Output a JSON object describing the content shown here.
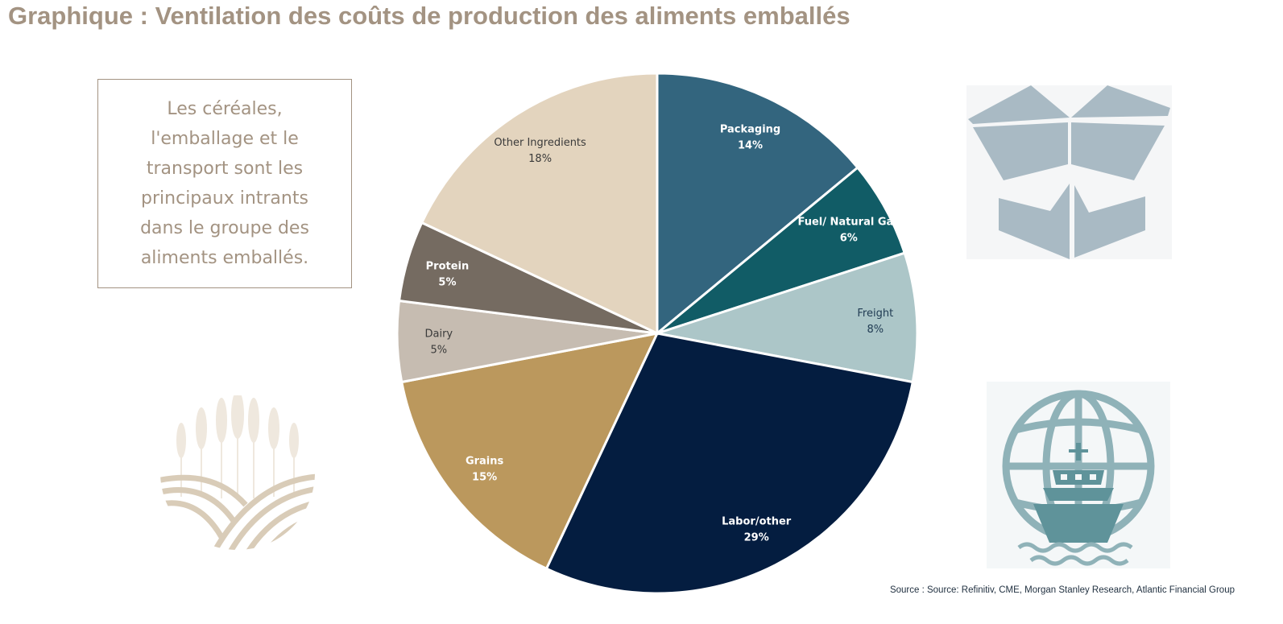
{
  "title": "Graphique : Ventilation des coûts de production des aliments emballés",
  "callout": "Les céréales, l'emballage et le transport sont les principaux intrants dans le groupe des aliments emballés.",
  "source": "Source : Source: Refinitiv, CME, Morgan Stanley Research, Atlantic Financial Group",
  "icons": {
    "box": "open-box-icon",
    "wheat": "wheat-field-icon",
    "ship": "ship-globe-icon"
  },
  "colors": {
    "title": "#a39382",
    "box_icon": "#a9bac4",
    "wheat_icon": "#d9ccb8",
    "ship_icon": "#5f939a"
  },
  "chart_data": {
    "type": "pie",
    "start_angle_deg": -90,
    "direction": "clockwise",
    "slices": [
      {
        "label": "Packaging",
        "value": 14,
        "display": "14%",
        "color": "#33657e",
        "label_color": "#ffffff",
        "bold": true
      },
      {
        "label": "Fuel/ Natural Gas",
        "value": 6,
        "display": "6%",
        "color": "#115c66",
        "label_color": "#ffffff",
        "bold": true
      },
      {
        "label": "Freight",
        "value": 8,
        "display": "8%",
        "color": "#acc6c8",
        "label_color": "#1f3a52",
        "bold": false
      },
      {
        "label": "Labor/other",
        "value": 29,
        "display": "29%",
        "color": "#041d40",
        "label_color": "#ffffff",
        "bold": true
      },
      {
        "label": "Grains",
        "value": 15,
        "display": "15%",
        "color": "#bb985d",
        "label_color": "#ffffff",
        "bold": true
      },
      {
        "label": "Dairy",
        "value": 5,
        "display": "5%",
        "color": "#c6bcb1",
        "label_color": "#3a3a3a",
        "bold": false
      },
      {
        "label": "Protein",
        "value": 5,
        "display": "5%",
        "color": "#756b61",
        "label_color": "#ffffff",
        "bold": true
      },
      {
        "label": "Other Ingredients",
        "value": 18,
        "display": "18%",
        "color": "#e3d4be",
        "label_color": "#3a3a3a",
        "bold": false
      }
    ]
  }
}
